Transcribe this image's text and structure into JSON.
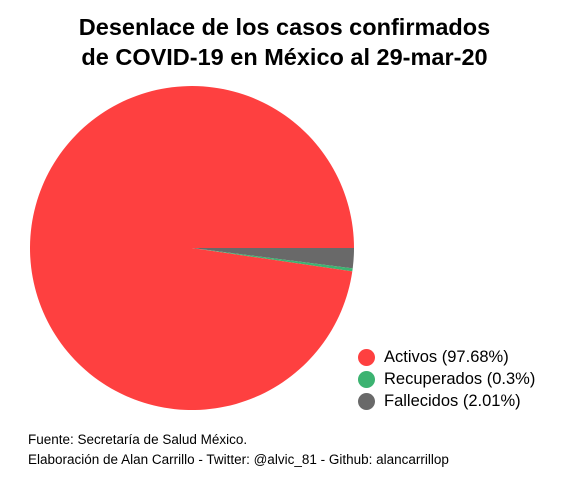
{
  "chart_data": {
    "type": "pie",
    "title_lines": [
      "Desenlace de los casos confirmados",
      "de COVID-19 en México al 29-mar-20"
    ],
    "slices": [
      {
        "label": "Activos",
        "percent": 97.68,
        "legend": "Activos (97.68%)",
        "color": "#fe4040"
      },
      {
        "label": "Recuperados",
        "percent": 0.3,
        "legend": "Recuperados (0.3%)",
        "color": "#3cb371"
      },
      {
        "label": "Fallecidos",
        "percent": 2.01,
        "legend": "Fallecidos (2.01%)",
        "color": "#696969"
      }
    ],
    "legend_position": "bottom-right"
  },
  "caption": {
    "source": "Fuente: Secretaría de Salud México.",
    "credit": "Elaboración de Alan Carrillo - Twitter: @alvic_81 - Github: alancarrillop"
  }
}
